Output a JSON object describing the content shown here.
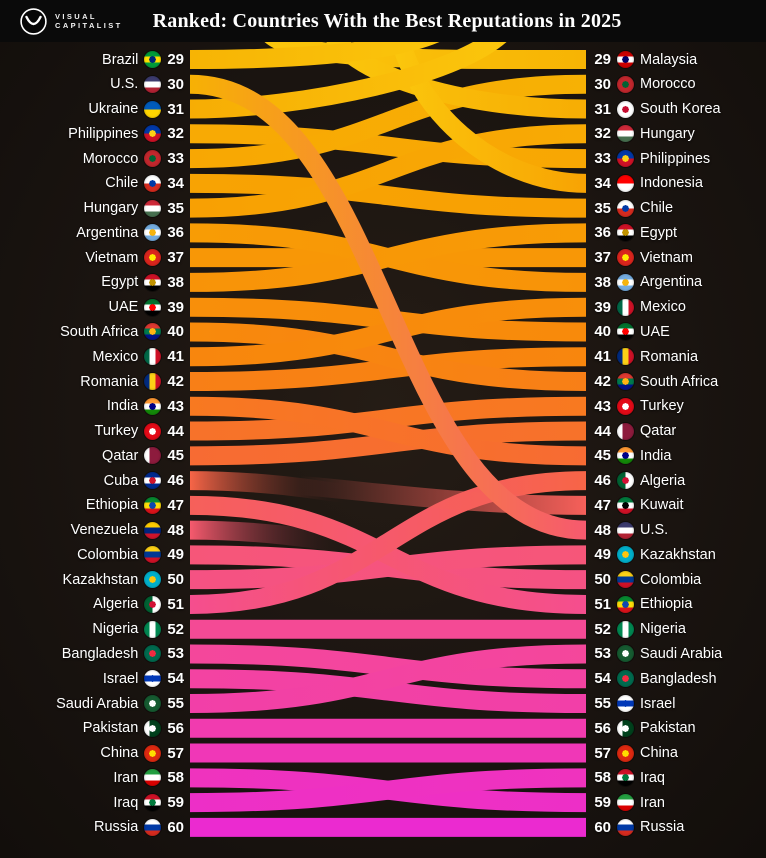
{
  "header": {
    "brand_top": "VISUAL",
    "brand_bottom": "CAPITALIST",
    "title": "Ranked: Countries With the Best Reputations in 2025"
  },
  "chart_data": {
    "type": "table",
    "title": "Ranked: Countries With the Best Reputations in 2025",
    "rank_range": [
      29,
      60
    ],
    "left_column_ranks": [
      {
        "rank": 29,
        "country": "Brazil"
      },
      {
        "rank": 30,
        "country": "U.S."
      },
      {
        "rank": 31,
        "country": "Ukraine"
      },
      {
        "rank": 32,
        "country": "Philippines"
      },
      {
        "rank": 33,
        "country": "Morocco"
      },
      {
        "rank": 34,
        "country": "Chile"
      },
      {
        "rank": 35,
        "country": "Hungary"
      },
      {
        "rank": 36,
        "country": "Argentina"
      },
      {
        "rank": 37,
        "country": "Vietnam"
      },
      {
        "rank": 38,
        "country": "Egypt"
      },
      {
        "rank": 39,
        "country": "UAE"
      },
      {
        "rank": 40,
        "country": "South Africa"
      },
      {
        "rank": 41,
        "country": "Mexico"
      },
      {
        "rank": 42,
        "country": "Romania"
      },
      {
        "rank": 43,
        "country": "India"
      },
      {
        "rank": 44,
        "country": "Turkey"
      },
      {
        "rank": 45,
        "country": "Qatar"
      },
      {
        "rank": 46,
        "country": "Cuba"
      },
      {
        "rank": 47,
        "country": "Ethiopia"
      },
      {
        "rank": 48,
        "country": "Venezuela"
      },
      {
        "rank": 49,
        "country": "Colombia"
      },
      {
        "rank": 50,
        "country": "Kazakhstan"
      },
      {
        "rank": 51,
        "country": "Algeria"
      },
      {
        "rank": 52,
        "country": "Nigeria"
      },
      {
        "rank": 53,
        "country": "Bangladesh"
      },
      {
        "rank": 54,
        "country": "Israel"
      },
      {
        "rank": 55,
        "country": "Saudi Arabia"
      },
      {
        "rank": 56,
        "country": "Pakistan"
      },
      {
        "rank": 57,
        "country": "China"
      },
      {
        "rank": 58,
        "country": "Iran"
      },
      {
        "rank": 59,
        "country": "Iraq"
      },
      {
        "rank": 60,
        "country": "Russia"
      }
    ],
    "right_column_ranks": [
      {
        "rank": 29,
        "country": "Malaysia"
      },
      {
        "rank": 30,
        "country": "Morocco"
      },
      {
        "rank": 31,
        "country": "South Korea"
      },
      {
        "rank": 32,
        "country": "Hungary"
      },
      {
        "rank": 33,
        "country": "Philippines"
      },
      {
        "rank": 34,
        "country": "Indonesia"
      },
      {
        "rank": 35,
        "country": "Chile"
      },
      {
        "rank": 36,
        "country": "Egypt"
      },
      {
        "rank": 37,
        "country": "Vietnam"
      },
      {
        "rank": 38,
        "country": "Argentina"
      },
      {
        "rank": 39,
        "country": "Mexico"
      },
      {
        "rank": 40,
        "country": "UAE"
      },
      {
        "rank": 41,
        "country": "Romania"
      },
      {
        "rank": 42,
        "country": "South Africa"
      },
      {
        "rank": 43,
        "country": "Turkey"
      },
      {
        "rank": 44,
        "country": "Qatar"
      },
      {
        "rank": 45,
        "country": "India"
      },
      {
        "rank": 46,
        "country": "Algeria"
      },
      {
        "rank": 47,
        "country": "Kuwait"
      },
      {
        "rank": 48,
        "country": "U.S."
      },
      {
        "rank": 49,
        "country": "Kazakhstan"
      },
      {
        "rank": 50,
        "country": "Colombia"
      },
      {
        "rank": 51,
        "country": "Ethiopia"
      },
      {
        "rank": 52,
        "country": "Nigeria"
      },
      {
        "rank": 53,
        "country": "Saudi Arabia"
      },
      {
        "rank": 54,
        "country": "Bangladesh"
      },
      {
        "rank": 55,
        "country": "Israel"
      },
      {
        "rank": 56,
        "country": "Pakistan"
      },
      {
        "rank": 57,
        "country": "China"
      },
      {
        "rank": 58,
        "country": "Iraq"
      },
      {
        "rank": 59,
        "country": "Iran"
      },
      {
        "rank": 60,
        "country": "Russia"
      }
    ],
    "links": [
      {
        "country": "U.S.",
        "from": 30,
        "to": 48
      },
      {
        "country": "Philippines",
        "from": 32,
        "to": 33
      },
      {
        "country": "Morocco",
        "from": 33,
        "to": 30
      },
      {
        "country": "Chile",
        "from": 34,
        "to": 35
      },
      {
        "country": "Hungary",
        "from": 35,
        "to": 32
      },
      {
        "country": "Argentina",
        "from": 36,
        "to": 38
      },
      {
        "country": "Vietnam",
        "from": 37,
        "to": 37
      },
      {
        "country": "Egypt",
        "from": 38,
        "to": 36
      },
      {
        "country": "UAE",
        "from": 39,
        "to": 40
      },
      {
        "country": "South Africa",
        "from": 40,
        "to": 42
      },
      {
        "country": "Mexico",
        "from": 41,
        "to": 39
      },
      {
        "country": "Romania",
        "from": 42,
        "to": 41
      },
      {
        "country": "India",
        "from": 43,
        "to": 45
      },
      {
        "country": "Turkey",
        "from": 44,
        "to": 43
      },
      {
        "country": "Qatar",
        "from": 45,
        "to": 44
      },
      {
        "country": "Ethiopia",
        "from": 47,
        "to": 51
      },
      {
        "country": "Colombia",
        "from": 49,
        "to": 50
      },
      {
        "country": "Kazakhstan",
        "from": 50,
        "to": 49
      },
      {
        "country": "Algeria",
        "from": 51,
        "to": 46
      },
      {
        "country": "Nigeria",
        "from": 52,
        "to": 52
      },
      {
        "country": "Bangladesh",
        "from": 53,
        "to": 54
      },
      {
        "country": "Israel",
        "from": 54,
        "to": 55
      },
      {
        "country": "Saudi Arabia",
        "from": 55,
        "to": 53
      },
      {
        "country": "Pakistan",
        "from": 56,
        "to": 56
      },
      {
        "country": "China",
        "from": 57,
        "to": 57
      },
      {
        "country": "Iran",
        "from": 58,
        "to": 59
      },
      {
        "country": "Iraq",
        "from": 59,
        "to": 58
      },
      {
        "country": "Russia",
        "from": 60,
        "to": 60
      }
    ],
    "entering": [
      {
        "country": "Malaysia",
        "to": 29,
        "mode": "top"
      },
      {
        "country": "South Korea",
        "to": 31,
        "mode": "top"
      },
      {
        "country": "Indonesia",
        "to": 34,
        "mode": "top"
      },
      {
        "country": "Kuwait",
        "to": 47,
        "mode": "fade"
      }
    ],
    "exiting": [
      {
        "country": "Brazil",
        "from": 29,
        "mode": "top"
      },
      {
        "country": "Ukraine",
        "from": 31,
        "mode": "top"
      },
      {
        "country": "Cuba",
        "from": 46,
        "mode": "fade"
      },
      {
        "country": "Venezuela",
        "from": 48,
        "mode": "fade"
      }
    ]
  },
  "colors": {
    "ramp": [
      {
        "rank": 29,
        "hex": "#F7B404"
      },
      {
        "rank": 35,
        "hex": "#F8A003"
      },
      {
        "rank": 41,
        "hex": "#F8860D"
      },
      {
        "rank": 45,
        "hex": "#F76B33"
      },
      {
        "rank": 48,
        "hex": "#F65A6E"
      },
      {
        "rank": 51,
        "hex": "#F54E8E"
      },
      {
        "rank": 55,
        "hex": "#F23FA8"
      },
      {
        "rank": 58,
        "hex": "#EF33BE"
      },
      {
        "rank": 60,
        "hex": "#EB2AD0"
      }
    ],
    "exit_gold": "#FBC60C",
    "background": "#1a1410",
    "header_background": "#0a0a0a",
    "text": "#ffffff"
  },
  "flags": {
    "Brazil": {
      "dir": "h",
      "stripes": [
        "#009B3A",
        "#FFDF00",
        "#009B3A"
      ],
      "emblem": "#002776"
    },
    "U.S.": {
      "dir": "h",
      "stripes": [
        "#3C3B6E",
        "#FFFFFF",
        "#B22234"
      ]
    },
    "Ukraine": {
      "dir": "h",
      "stripes": [
        "#005BBB",
        "#FFD500"
      ]
    },
    "Philippines": {
      "dir": "h",
      "stripes": [
        "#0038A8",
        "#CE1126"
      ],
      "emblem": "#FCD116"
    },
    "Morocco": {
      "dir": "h",
      "stripes": [
        "#C1272D"
      ],
      "emblem": "#006233"
    },
    "Chile": {
      "dir": "h",
      "stripes": [
        "#FFFFFF",
        "#D52B1E"
      ],
      "emblem": "#0039A6"
    },
    "Hungary": {
      "dir": "h",
      "stripes": [
        "#CE2939",
        "#FFFFFF",
        "#477050"
      ]
    },
    "Argentina": {
      "dir": "h",
      "stripes": [
        "#74ACDF",
        "#FFFFFF",
        "#74ACDF"
      ],
      "emblem": "#F6B40E"
    },
    "Vietnam": {
      "dir": "h",
      "stripes": [
        "#DA251D"
      ],
      "emblem": "#FFEB00"
    },
    "Egypt": {
      "dir": "h",
      "stripes": [
        "#CE1126",
        "#FFFFFF",
        "#000000"
      ],
      "emblem": "#C09300"
    },
    "UAE": {
      "dir": "h",
      "stripes": [
        "#00732F",
        "#FFFFFF",
        "#000000"
      ],
      "emblem": "#FF0000"
    },
    "South Africa": {
      "dir": "h",
      "stripes": [
        "#DE3831",
        "#007A4D",
        "#001489"
      ],
      "emblem": "#FFB612"
    },
    "Mexico": {
      "dir": "v",
      "stripes": [
        "#006847",
        "#FFFFFF",
        "#CE1126"
      ]
    },
    "Romania": {
      "dir": "v",
      "stripes": [
        "#002B7F",
        "#FCD116",
        "#CE1126"
      ]
    },
    "India": {
      "dir": "h",
      "stripes": [
        "#FF9933",
        "#FFFFFF",
        "#138808"
      ],
      "emblem": "#000088"
    },
    "Turkey": {
      "dir": "h",
      "stripes": [
        "#E30A17"
      ],
      "emblem": "#FFFFFF"
    },
    "Qatar": {
      "dir": "v",
      "stripes": [
        "#FFFFFF",
        "#8D1B3D",
        "#8D1B3D"
      ]
    },
    "Cuba": {
      "dir": "h",
      "stripes": [
        "#002A8F",
        "#FFFFFF",
        "#002A8F"
      ],
      "emblem": "#CF142B"
    },
    "Ethiopia": {
      "dir": "h",
      "stripes": [
        "#078930",
        "#FCDD09",
        "#DA121A"
      ],
      "emblem": "#0F47AF"
    },
    "Venezuela": {
      "dir": "h",
      "stripes": [
        "#FFCC00",
        "#00247D",
        "#CF142B"
      ]
    },
    "Colombia": {
      "dir": "h",
      "stripes": [
        "#FCD116",
        "#003893",
        "#CE1126"
      ]
    },
    "Kazakhstan": {
      "dir": "h",
      "stripes": [
        "#00AFCA"
      ],
      "emblem": "#FEC50C"
    },
    "Algeria": {
      "dir": "v",
      "stripes": [
        "#006233",
        "#FFFFFF"
      ],
      "emblem": "#D21034"
    },
    "Nigeria": {
      "dir": "v",
      "stripes": [
        "#008751",
        "#FFFFFF",
        "#008751"
      ]
    },
    "Bangladesh": {
      "dir": "h",
      "stripes": [
        "#006A4E"
      ],
      "emblem": "#F42A41"
    },
    "Israel": {
      "dir": "h",
      "stripes": [
        "#FFFFFF",
        "#0038B8",
        "#FFFFFF"
      ],
      "emblem": "#0038B8"
    },
    "Saudi Arabia": {
      "dir": "h",
      "stripes": [
        "#165B31"
      ],
      "emblem": "#FFFFFF"
    },
    "Pakistan": {
      "dir": "v",
      "stripes": [
        "#FFFFFF",
        "#01411C",
        "#01411C"
      ],
      "emblem": "#FFFFFF"
    },
    "China": {
      "dir": "h",
      "stripes": [
        "#DE2910"
      ],
      "emblem": "#FFDE00"
    },
    "Iran": {
      "dir": "h",
      "stripes": [
        "#239F40",
        "#FFFFFF",
        "#DA0000"
      ]
    },
    "Iraq": {
      "dir": "h",
      "stripes": [
        "#CE1126",
        "#FFFFFF",
        "#000000"
      ],
      "emblem": "#007A3D"
    },
    "Russia": {
      "dir": "h",
      "stripes": [
        "#FFFFFF",
        "#0039A6",
        "#D52B1E"
      ]
    },
    "Malaysia": {
      "dir": "h",
      "stripes": [
        "#CC0001",
        "#FFFFFF",
        "#CC0001"
      ],
      "emblem": "#010066"
    },
    "South Korea": {
      "dir": "h",
      "stripes": [
        "#FFFFFF"
      ],
      "emblem": "#C60C30"
    },
    "Indonesia": {
      "dir": "h",
      "stripes": [
        "#FF0000",
        "#FFFFFF"
      ]
    },
    "Kuwait": {
      "dir": "h",
      "stripes": [
        "#007A3D",
        "#FFFFFF",
        "#CE1126"
      ],
      "emblem": "#000000"
    }
  }
}
